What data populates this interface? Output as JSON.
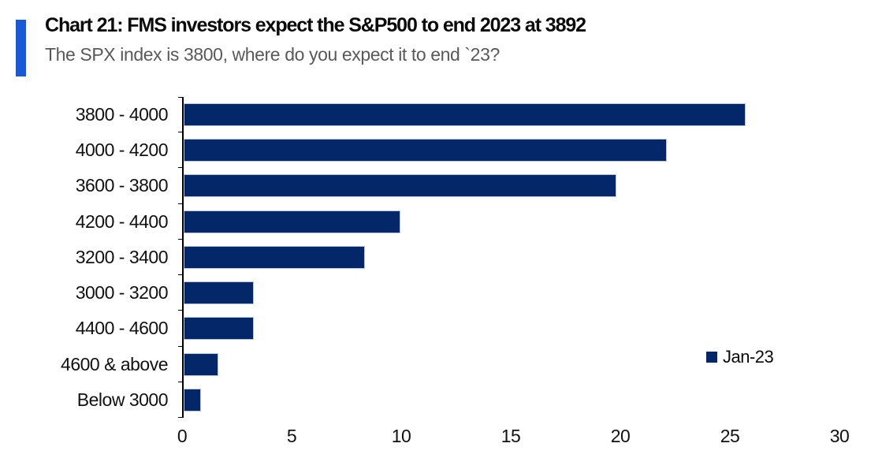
{
  "header": {
    "title": "Chart 21: FMS investors expect the S&P500 to end 2023 at 3892",
    "subtitle": "The SPX index is 3800, where do you expect it to end `23?"
  },
  "legend": {
    "label": "Jan-23"
  },
  "colors": {
    "accent": "#1759d8",
    "bar": "#042769",
    "bar_border": "#b9c5e0",
    "subtitle_text": "#595959",
    "axis": "#000000"
  },
  "chart_data": {
    "type": "bar",
    "orientation": "horizontal",
    "title": "Chart 21: FMS investors expect the S&P500 to end 2023 at 3892",
    "subtitle": "The SPX index is 3800, where do you expect it to end `23?",
    "categories": [
      "3800 - 4000",
      "4000 - 4200",
      "3600 - 3800",
      "4200 - 4400",
      "3200 - 3400",
      "3000 - 3200",
      "4400 - 4600",
      "4600 & above",
      "Below 3000"
    ],
    "series": [
      {
        "name": "Jan-23",
        "values": [
          25.7,
          22.1,
          19.8,
          9.9,
          8.3,
          3.2,
          3.2,
          1.6,
          0.8
        ]
      }
    ],
    "xlabel": "",
    "ylabel": "",
    "xlim": [
      0,
      30
    ],
    "xticks": [
      0,
      5,
      10,
      15,
      20,
      25,
      30
    ],
    "grid": false,
    "legend_position": "right-middle"
  }
}
